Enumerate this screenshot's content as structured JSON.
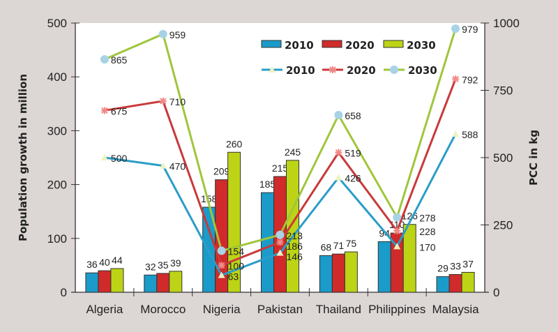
{
  "chart_data": {
    "type": "bar+line",
    "categories": [
      "Algeria",
      "Morocco",
      "Nigeria",
      "Pakistan",
      "Thailand",
      "Philippines",
      "Malaysia"
    ],
    "ylabel": "Population growth in million",
    "y2label": "PCC in kg",
    "ylim": [
      0,
      500
    ],
    "y2lim": [
      0,
      1000
    ],
    "yticks": [
      0,
      100,
      200,
      300,
      400,
      500
    ],
    "y2ticks": [
      0,
      250,
      500,
      750,
      1000
    ],
    "legend_position": "top-right",
    "bar_series": [
      {
        "name": "2010",
        "color": "#1a9bc9",
        "values": [
          36,
          32,
          158,
          185,
          68,
          94,
          29
        ]
      },
      {
        "name": "2020",
        "color": "#d02a2a",
        "values": [
          40,
          35,
          209,
          215,
          71,
          110,
          33
        ]
      },
      {
        "name": "2030",
        "color": "#bcd415",
        "values": [
          44,
          39,
          260,
          245,
          75,
          126,
          37
        ]
      }
    ],
    "line_series": [
      {
        "name": "2010",
        "color": "#2a9dc8",
        "marker": "triangle",
        "marker_color": "#eef2c0",
        "values": [
          500,
          470,
          63,
          146,
          426,
          170,
          588
        ]
      },
      {
        "name": "2020",
        "color": "#c9393a",
        "marker": "star",
        "marker_color": "#f08a86",
        "values": [
          675,
          710,
          100,
          186,
          519,
          228,
          792
        ]
      },
      {
        "name": "2030",
        "color": "#9fc63a",
        "marker": "circle",
        "marker_color": "#a8d3e6",
        "values": [
          865,
          959,
          154,
          213,
          658,
          278,
          979
        ]
      }
    ]
  }
}
